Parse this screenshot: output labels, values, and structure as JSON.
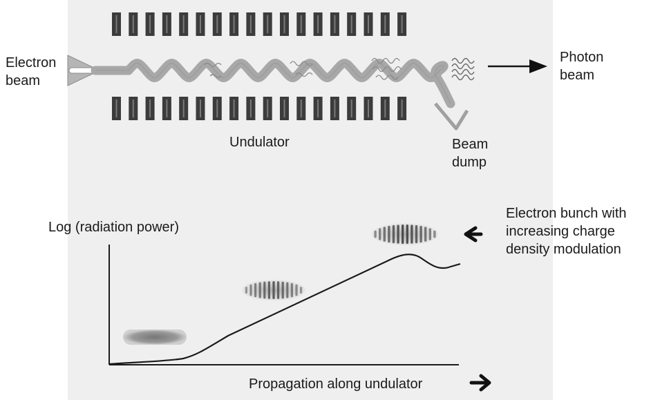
{
  "labels": {
    "electron_beam": [
      "Electron",
      "beam"
    ],
    "photon_beam": [
      "Photon",
      "beam"
    ],
    "undulator": "Undulator",
    "beam_dump": [
      "Beam",
      "dump"
    ],
    "y_axis": "Log (radiation power)",
    "x_axis": "Propagation along undulator",
    "bunch_note": [
      "Electron bunch with",
      "increasing charge",
      "density modulation"
    ]
  },
  "colors": {
    "magnet": "#3c3c3c",
    "magnet_inner": "#7a7a7a",
    "beam": "#a9a9a9",
    "curve": "#1a1a1a",
    "arrow": "#111111"
  },
  "icons": {
    "photon_arrow": "right-arrow-icon",
    "propagation_arrow": "right-arrow-icon",
    "bunch_pointer": "left-arrow-icon"
  }
}
